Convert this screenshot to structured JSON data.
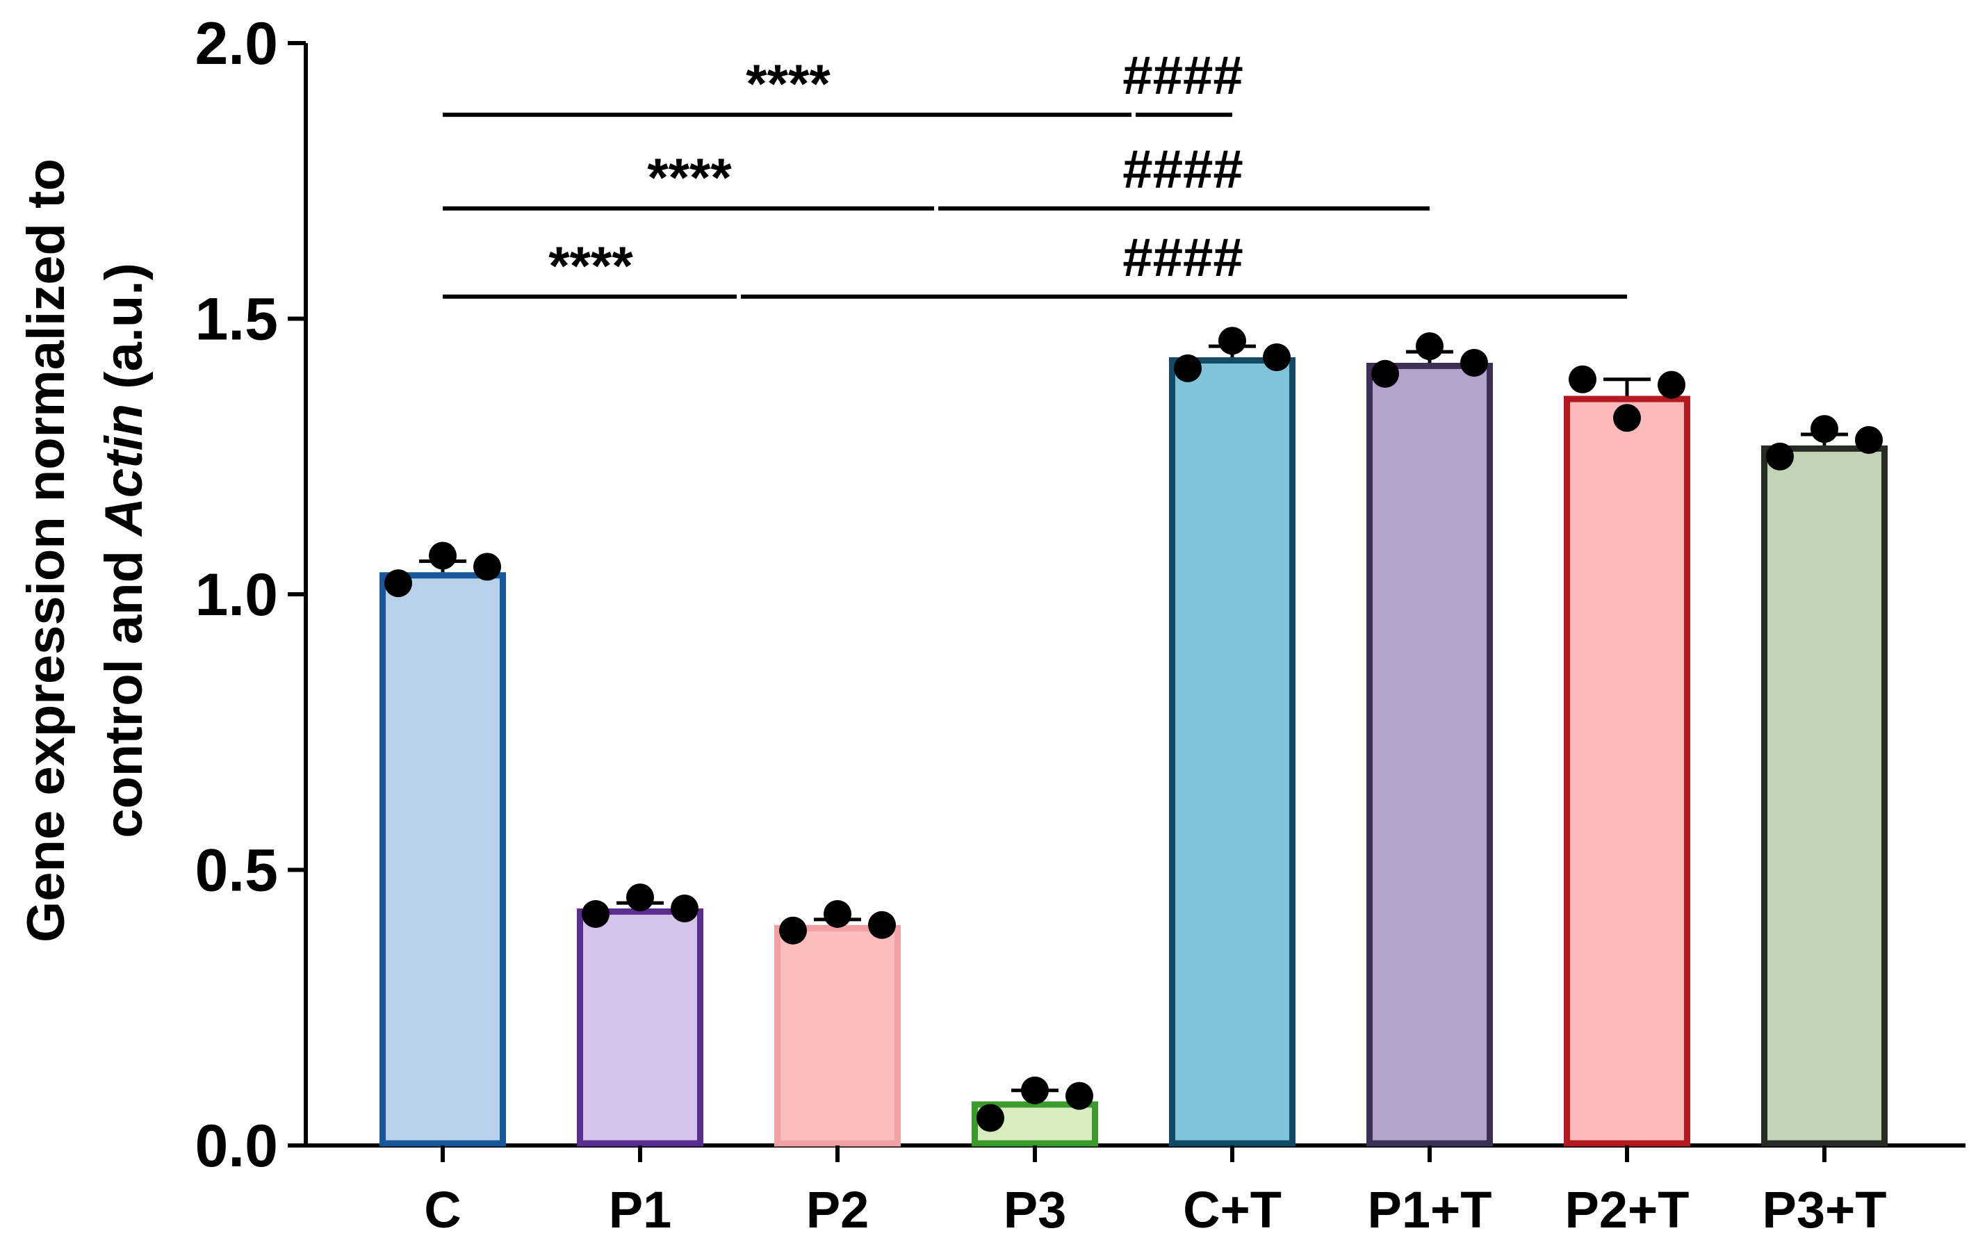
{
  "chart_data": {
    "type": "bar",
    "title": "",
    "xlabel": "",
    "ylabel_line1": "Gene expression normalized to",
    "ylabel_line2_prefix": "control and ",
    "ylabel_line2_italic": "Actin",
    "ylabel_line2_suffix": " (a.u.)",
    "ylim": [
      0,
      2.0
    ],
    "yticks": [
      0.0,
      0.5,
      1.0,
      1.5,
      2.0
    ],
    "ytick_labels": [
      "0.0",
      "0.5",
      "1.0",
      "1.5",
      "2.0"
    ],
    "categories": [
      "C",
      "P1",
      "P2",
      "P3",
      "C+T",
      "P1+T",
      "P2+T",
      "P3+T"
    ],
    "values": [
      1.04,
      0.43,
      0.4,
      0.08,
      1.43,
      1.42,
      1.36,
      1.27
    ],
    "errors": [
      0.02,
      0.01,
      0.01,
      0.02,
      0.02,
      0.02,
      0.03,
      0.02
    ],
    "points": [
      [
        1.02,
        1.07,
        1.05
      ],
      [
        0.42,
        0.45,
        0.43
      ],
      [
        0.39,
        0.42,
        0.4
      ],
      [
        0.05,
        0.1,
        0.09
      ],
      [
        1.41,
        1.46,
        1.43
      ],
      [
        1.4,
        1.45,
        1.42
      ],
      [
        1.39,
        1.32,
        1.38
      ],
      [
        1.25,
        1.3,
        1.28
      ]
    ],
    "fill_colors": [
      "#b9d0ea",
      "#d4c4ea",
      "#fbbcbe",
      "#d9ecc0",
      "#7fc4da",
      "#b4a3cb",
      "#fcbabd",
      "#c2d3b7"
    ],
    "edge_colors": [
      "#17579a",
      "#5a2d90",
      "#f1a1a4",
      "#3a9a2c",
      "#134a64",
      "#3c2f58",
      "#b31a20",
      "#262c23"
    ],
    "significance": [
      {
        "from": 0,
        "to": 4,
        "y": 1.87,
        "left_text": "****",
        "right_text": "####",
        "split": 3.0
      },
      {
        "from": 0,
        "to": 5,
        "y": 1.7,
        "left_text": "****",
        "right_text": "####",
        "split": 2.0
      },
      {
        "from": 0,
        "to": 6,
        "y": 1.54,
        "left_text": "****",
        "right_text": "####",
        "split": 1.0
      }
    ]
  }
}
